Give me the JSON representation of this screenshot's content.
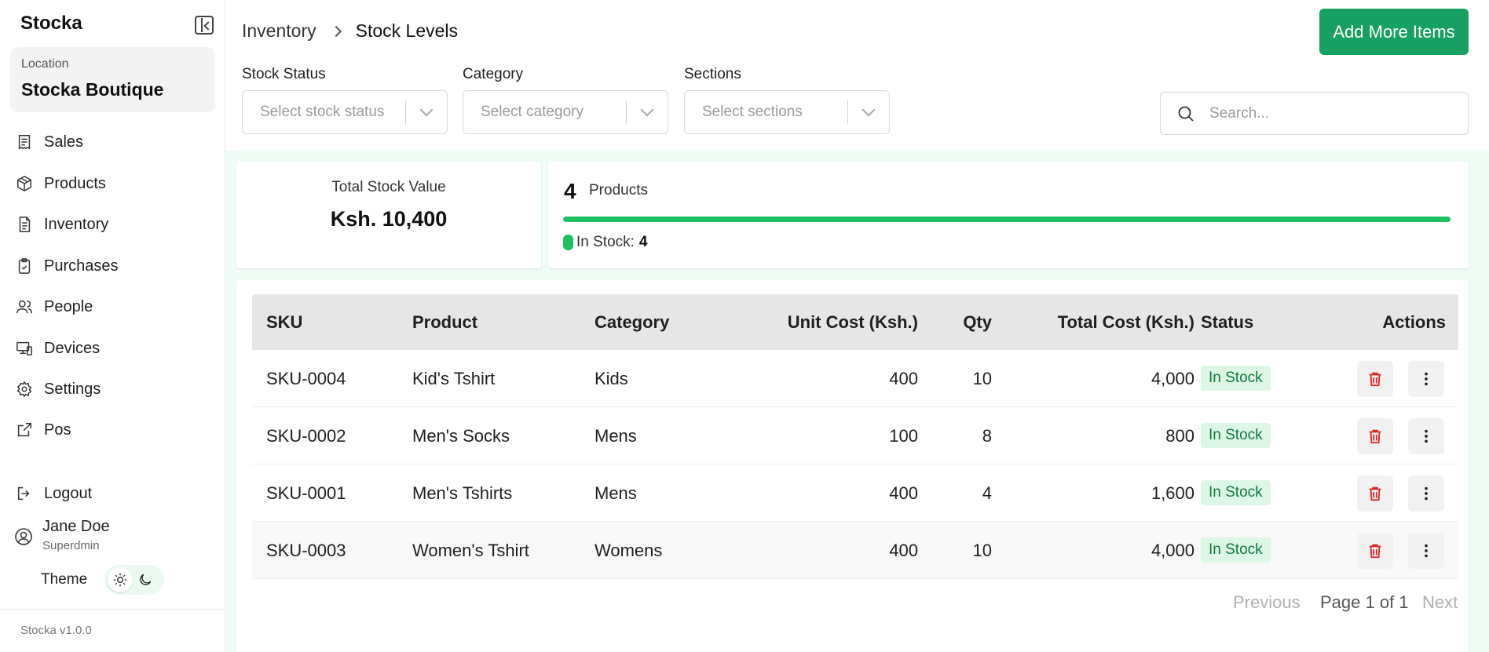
{
  "app": {
    "brand": "Stocka",
    "version": "Stocka v1.0.0"
  },
  "location": {
    "label": "Location",
    "name": "Stocka Boutique"
  },
  "nav": [
    {
      "label": "Sales",
      "icon": "receipt-icon"
    },
    {
      "label": "Products",
      "icon": "box-icon"
    },
    {
      "label": "Inventory",
      "icon": "document-icon"
    },
    {
      "label": "Purchases",
      "icon": "clipboard-check-icon"
    },
    {
      "label": "People",
      "icon": "users-icon"
    },
    {
      "label": "Devices",
      "icon": "devices-icon"
    },
    {
      "label": "Settings",
      "icon": "gear-icon"
    },
    {
      "label": "Pos",
      "icon": "external-link-icon"
    }
  ],
  "logout": {
    "label": "Logout",
    "icon": "logout-icon"
  },
  "user": {
    "name": "Jane Doe",
    "role": "Superdmin"
  },
  "theme": {
    "label": "Theme",
    "active": "light"
  },
  "breadcrumb": {
    "parent": "Inventory",
    "current": "Stock Levels"
  },
  "add_button": "Add More Items",
  "filters": [
    {
      "label": "Stock Status",
      "placeholder": "Select stock status"
    },
    {
      "label": "Category",
      "placeholder": "Select category"
    },
    {
      "label": "Sections",
      "placeholder": "Select sections"
    }
  ],
  "search": {
    "placeholder": "Search..."
  },
  "summary": {
    "total_value_label": "Total Stock Value",
    "total_value": "Ksh. 10,400",
    "product_count": "4",
    "product_label": "Products",
    "in_stock_label": "In Stock:",
    "in_stock_count": "4",
    "in_stock_fraction": 1.0,
    "accent": "#1fc05f"
  },
  "table": {
    "headers": [
      "SKU",
      "Product",
      "Category",
      "Unit Cost (Ksh.)",
      "Qty",
      "Total Cost (Ksh.)",
      "Status",
      "Actions"
    ],
    "rows": [
      {
        "sku": "SKU-0004",
        "product": "Kid's Tshirt",
        "category": "Kids",
        "unit_cost": "400",
        "qty": "10",
        "total": "4,000",
        "status": "In Stock"
      },
      {
        "sku": "SKU-0002",
        "product": "Men's Socks",
        "category": "Mens",
        "unit_cost": "100",
        "qty": "8",
        "total": "800",
        "status": "In Stock"
      },
      {
        "sku": "SKU-0001",
        "product": "Men's Tshirts",
        "category": "Mens",
        "unit_cost": "400",
        "qty": "4",
        "total": "1,600",
        "status": "In Stock"
      },
      {
        "sku": "SKU-0003",
        "product": "Women's Tshirt",
        "category": "Womens",
        "unit_cost": "400",
        "qty": "10",
        "total": "4,000",
        "status": "In Stock"
      }
    ]
  },
  "pagination": {
    "prev": "Previous",
    "info": "Page 1 of 1",
    "next": "Next"
  },
  "colors": {
    "primary": "#16a062",
    "danger": "#e02424",
    "badge_bg": "#dcf7e6"
  }
}
